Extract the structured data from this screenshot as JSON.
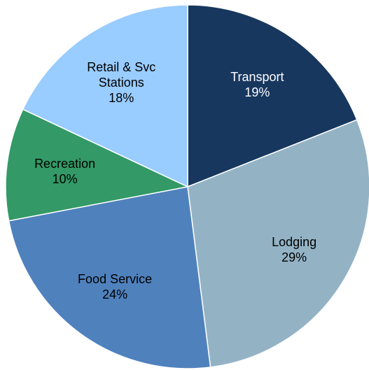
{
  "chart_data": {
    "type": "pie",
    "categories": [
      "Transport",
      "Lodging",
      "Food Service",
      "Recreation",
      "Retail & Svc Stations"
    ],
    "values": [
      19,
      29,
      24,
      10,
      18
    ],
    "value_labels": [
      "19%",
      "29%",
      "24%",
      "10%",
      "18%"
    ],
    "colors": [
      "#17375e",
      "#93b3c5",
      "#4f81bd",
      "#339966",
      "#99ccff"
    ]
  }
}
